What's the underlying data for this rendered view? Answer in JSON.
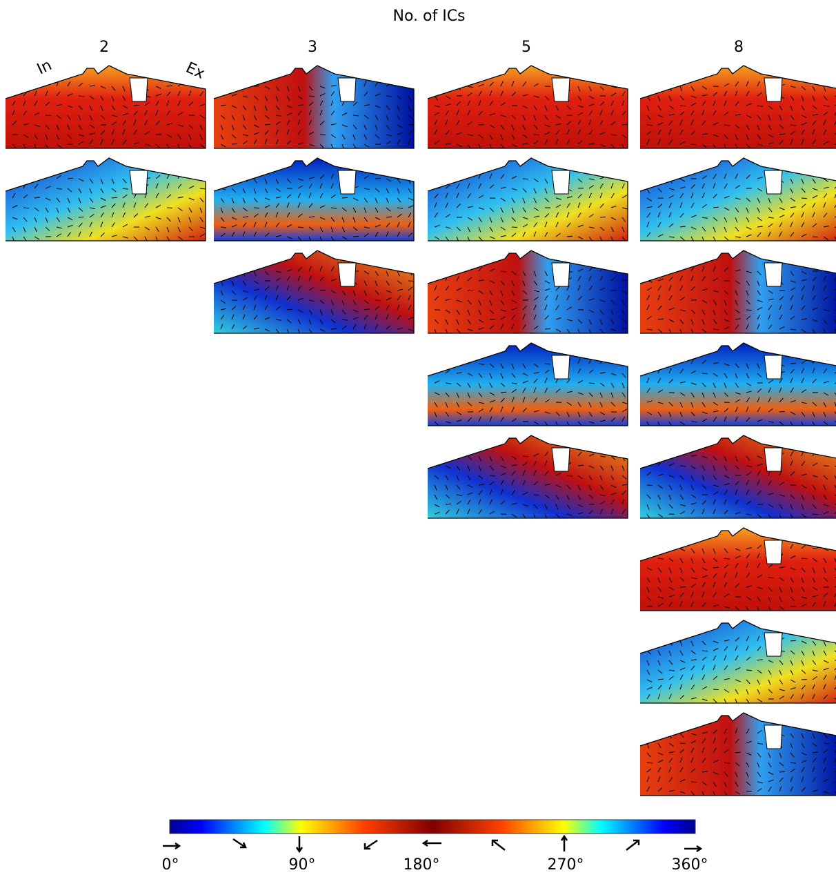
{
  "title": "No. of ICs",
  "columns": [
    2,
    3,
    5,
    8
  ],
  "side_labels": {
    "inlet": "In",
    "exhaust": "Ex"
  },
  "colorbar": {
    "labels": [
      "0°",
      "90°",
      "180°",
      "270°",
      "360°"
    ]
  }
}
